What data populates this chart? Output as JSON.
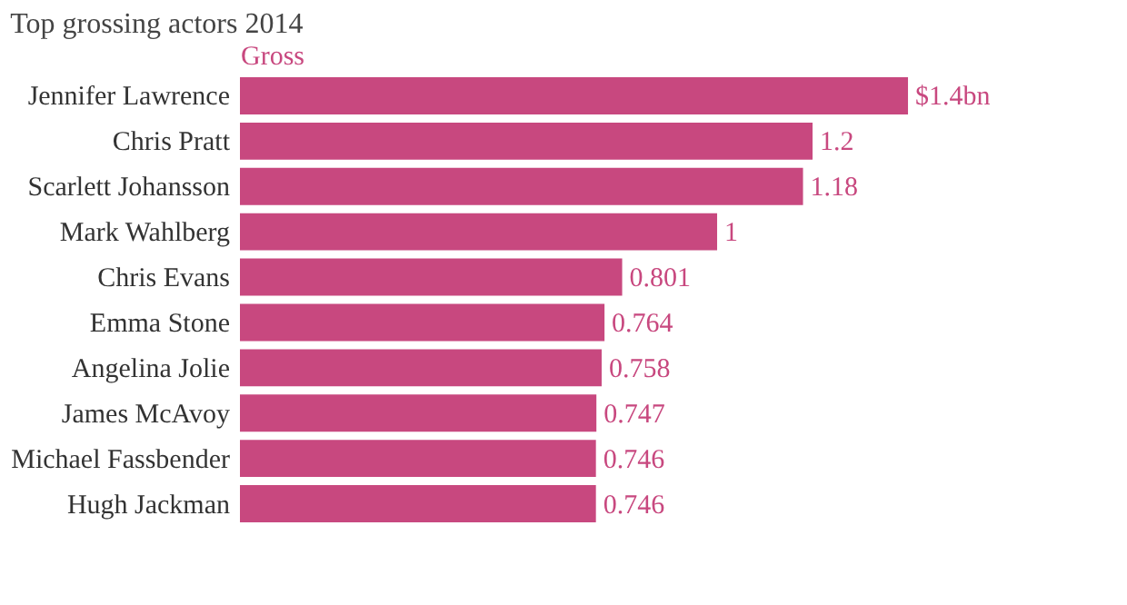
{
  "chart_data": {
    "type": "bar",
    "orientation": "horizontal",
    "title": "Top grossing actors 2014",
    "xlabel": "Gross",
    "categories": [
      "Jennifer Lawrence",
      "Chris Pratt",
      "Scarlett Johansson",
      "Mark Wahlberg",
      "Chris Evans",
      "Emma Stone",
      "Angelina Jolie",
      "James McAvoy",
      "Michael Fassbender",
      "Hugh Jackman"
    ],
    "values": [
      1.4,
      1.2,
      1.18,
      1,
      0.801,
      0.764,
      0.758,
      0.747,
      0.746,
      0.746
    ],
    "value_labels": [
      "$1.4bn",
      "1.2",
      "1.18",
      "1",
      "0.801",
      "0.764",
      "0.758",
      "0.747",
      "0.746",
      "0.746"
    ],
    "color": "#c8487f",
    "grid": false,
    "tick_labels": "y"
  }
}
